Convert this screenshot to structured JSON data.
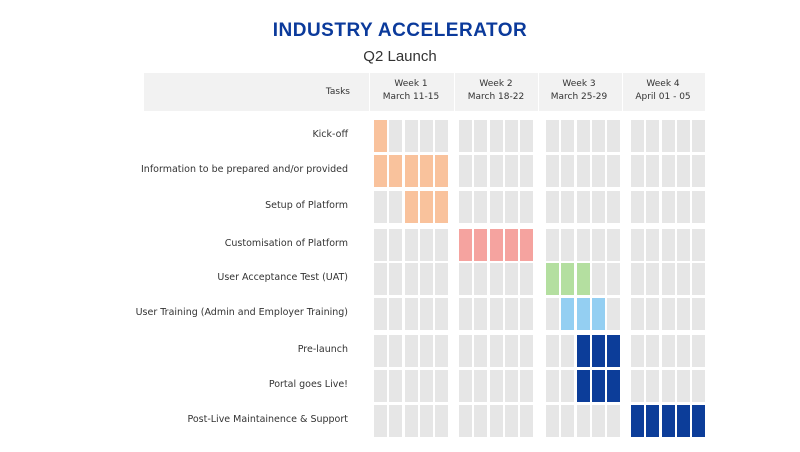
{
  "colors": {
    "title": "#0b3a9b",
    "empty": "#e6e6e6",
    "orange": "#f9c29c",
    "red": "#f5a39f",
    "green": "#b4dfa0",
    "lightblue": "#94cff2",
    "navy": "#0c3d99"
  },
  "chart_data": {
    "type": "gantt",
    "title": "INDUSTRY ACCELERATOR",
    "subtitle": "Q2 Launch",
    "task_column_header": "Tasks",
    "weeks": [
      {
        "label": "Week 1",
        "dates": "March 11-15"
      },
      {
        "label": "Week 2",
        "dates": "March 18-22"
      },
      {
        "label": "Week 3",
        "dates": "March 25-29"
      },
      {
        "label": "Week 4",
        "dates": "April 01 - 05"
      }
    ],
    "days_per_week": 5,
    "tasks": [
      {
        "name": "Kick-off",
        "days": [
          1
        ],
        "color": "orange"
      },
      {
        "name": "Information to be prepared and/or provided",
        "days": [
          1,
          2,
          3,
          4,
          5
        ],
        "color": "orange"
      },
      {
        "name": "Setup of Platform",
        "days": [
          3,
          4,
          5
        ],
        "color": "orange"
      },
      {
        "name": "Customisation of Platform",
        "days": [
          6,
          7,
          8,
          9,
          10
        ],
        "color": "red"
      },
      {
        "name": "User Acceptance Test (UAT)",
        "days": [
          11,
          12,
          13
        ],
        "color": "green"
      },
      {
        "name": "User Training (Admin and Employer Training)",
        "days": [
          12,
          13,
          14
        ],
        "color": "lightblue"
      },
      {
        "name": "Pre-launch",
        "days": [
          13,
          14,
          15
        ],
        "color": "navy"
      },
      {
        "name": "Portal goes Live!",
        "days": [
          13,
          14,
          15
        ],
        "color": "navy"
      },
      {
        "name": "Post-Live Maintainence & Support",
        "days": [
          16,
          17,
          18,
          19,
          20
        ],
        "color": "navy"
      }
    ]
  }
}
